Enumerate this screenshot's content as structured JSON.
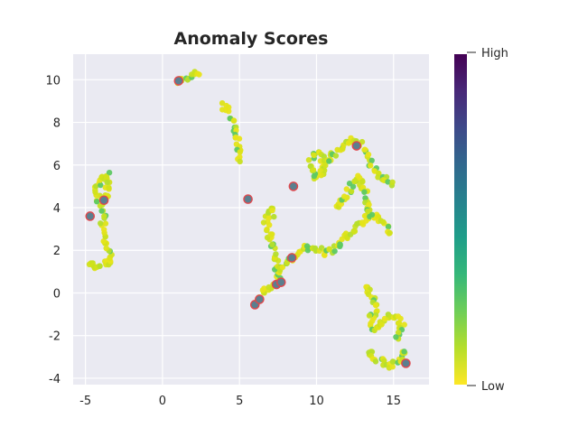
{
  "chart_data": {
    "type": "scatter",
    "title": "Anomaly Scores",
    "xlabel": "",
    "ylabel": "",
    "xlim": [
      -5.8,
      17.3
    ],
    "ylim": [
      -4.3,
      11.2
    ],
    "xticks": [
      -5,
      0,
      5,
      10,
      15
    ],
    "yticks": [
      -4,
      -2,
      0,
      2,
      4,
      6,
      8,
      10
    ],
    "grid": true,
    "colormap": "viridis",
    "colorbar": {
      "high_label": "High",
      "low_label": "Low",
      "colors_low_to_high": [
        "#fde725",
        "#b5de2b",
        "#6ece58",
        "#35b779",
        "#1f9e89",
        "#26828e",
        "#31688e",
        "#3e4989",
        "#482878",
        "#440154"
      ]
    },
    "point_color_low": "#e8e419",
    "point_color_mid": "#5ec962",
    "anomaly_marker_color": "#e0474c",
    "clusters": [
      {
        "path": [
          [
            -4.8,
            1.4
          ],
          [
            -4.4,
            1.2
          ],
          [
            -3.6,
            1.4
          ],
          [
            -3.3,
            1.6
          ],
          [
            -3.5,
            2.0
          ],
          [
            -3.8,
            2.4
          ],
          [
            -3.9,
            3.0
          ],
          [
            -3.8,
            3.8
          ],
          [
            -4.1,
            4.3
          ],
          [
            -4.3,
            4.9
          ],
          [
            -4.0,
            5.4
          ],
          [
            -3.6,
            5.5
          ],
          [
            -3.5,
            5.0
          ],
          [
            -3.7,
            4.4
          ]
        ],
        "anomaly_score": 0.1
      },
      {
        "path": [
          [
            1.0,
            9.95
          ],
          [
            1.5,
            10.05
          ],
          [
            2.0,
            10.2
          ],
          [
            2.4,
            10.35
          ]
        ],
        "anomaly_score": 0.05
      },
      {
        "path": [
          [
            4.0,
            8.8
          ],
          [
            4.3,
            8.4
          ],
          [
            4.6,
            7.9
          ],
          [
            4.9,
            7.3
          ],
          [
            5.0,
            6.6
          ],
          [
            5.1,
            6.0
          ]
        ],
        "anomaly_score": 0.1
      },
      {
        "path": [
          [
            6.0,
            -0.6
          ],
          [
            6.3,
            -0.3
          ],
          [
            6.8,
            0.2
          ],
          [
            7.2,
            0.4
          ],
          [
            7.5,
            0.8
          ],
          [
            7.6,
            1.2
          ],
          [
            7.3,
            1.7
          ],
          [
            7.1,
            2.3
          ],
          [
            6.8,
            3.0
          ],
          [
            6.7,
            3.6
          ],
          [
            7.0,
            3.9
          ],
          [
            7.3,
            3.6
          ]
        ],
        "anomaly_score": 0.1
      },
      {
        "path": [
          [
            7.3,
            1.1
          ],
          [
            7.9,
            1.2
          ],
          [
            8.3,
            1.6
          ],
          [
            8.8,
            1.9
          ],
          [
            9.4,
            2.2
          ],
          [
            10.0,
            2.1
          ],
          [
            10.6,
            1.9
          ],
          [
            11.2,
            2.1
          ],
          [
            11.8,
            2.5
          ],
          [
            12.3,
            2.9
          ],
          [
            12.9,
            3.3
          ],
          [
            13.4,
            3.7
          ],
          [
            14.0,
            3.6
          ],
          [
            14.5,
            3.1
          ],
          [
            14.8,
            2.7
          ]
        ],
        "anomaly_score": 0.1
      },
      {
        "path": [
          [
            9.6,
            5.8
          ],
          [
            9.7,
            6.4
          ],
          [
            10.1,
            6.6
          ],
          [
            10.5,
            6.2
          ],
          [
            10.4,
            5.6
          ],
          [
            10.0,
            5.4
          ],
          [
            9.6,
            5.8
          ]
        ],
        "anomaly_score": 0.1
      },
      {
        "path": [
          [
            10.6,
            6.1
          ],
          [
            11.2,
            6.5
          ],
          [
            11.8,
            6.9
          ],
          [
            12.3,
            7.2
          ],
          [
            12.8,
            7.0
          ],
          [
            13.3,
            6.5
          ],
          [
            13.7,
            5.9
          ],
          [
            14.1,
            5.5
          ],
          [
            14.5,
            5.3
          ],
          [
            14.9,
            5.0
          ]
        ],
        "anomaly_score": 0.1
      },
      {
        "path": [
          [
            11.3,
            4.0
          ],
          [
            11.8,
            4.5
          ],
          [
            12.3,
            5.0
          ],
          [
            12.8,
            5.5
          ],
          [
            13.1,
            4.8
          ],
          [
            13.3,
            4.2
          ],
          [
            13.5,
            3.5
          ]
        ],
        "anomaly_score": 0.1
      },
      {
        "path": [
          [
            13.2,
            0.3
          ],
          [
            13.6,
            -0.2
          ],
          [
            13.9,
            -0.7
          ],
          [
            13.5,
            -1.2
          ],
          [
            13.7,
            -1.8
          ],
          [
            14.3,
            -1.4
          ],
          [
            14.9,
            -1.0
          ],
          [
            15.4,
            -1.2
          ],
          [
            15.6,
            -1.8
          ],
          [
            15.2,
            -2.2
          ]
        ],
        "anomaly_score": 0.1
      },
      {
        "path": [
          [
            13.4,
            -2.7
          ],
          [
            13.8,
            -3.0
          ],
          [
            14.3,
            -3.3
          ],
          [
            14.8,
            -3.4
          ],
          [
            15.3,
            -3.2
          ],
          [
            15.6,
            -2.9
          ],
          [
            15.8,
            -2.5
          ]
        ],
        "anomaly_score": 0.1
      }
    ],
    "anomalies": [
      {
        "x": -4.7,
        "y": 3.6
      },
      {
        "x": -3.8,
        "y": 4.35
      },
      {
        "x": 1.05,
        "y": 9.95
      },
      {
        "x": 5.55,
        "y": 4.4
      },
      {
        "x": 6.0,
        "y": -0.55
      },
      {
        "x": 6.3,
        "y": -0.3
      },
      {
        "x": 7.4,
        "y": 0.4
      },
      {
        "x": 7.7,
        "y": 0.5
      },
      {
        "x": 8.4,
        "y": 1.65
      },
      {
        "x": 8.5,
        "y": 5.0
      },
      {
        "x": 12.6,
        "y": 6.9
      },
      {
        "x": 15.8,
        "y": -3.3
      }
    ]
  }
}
